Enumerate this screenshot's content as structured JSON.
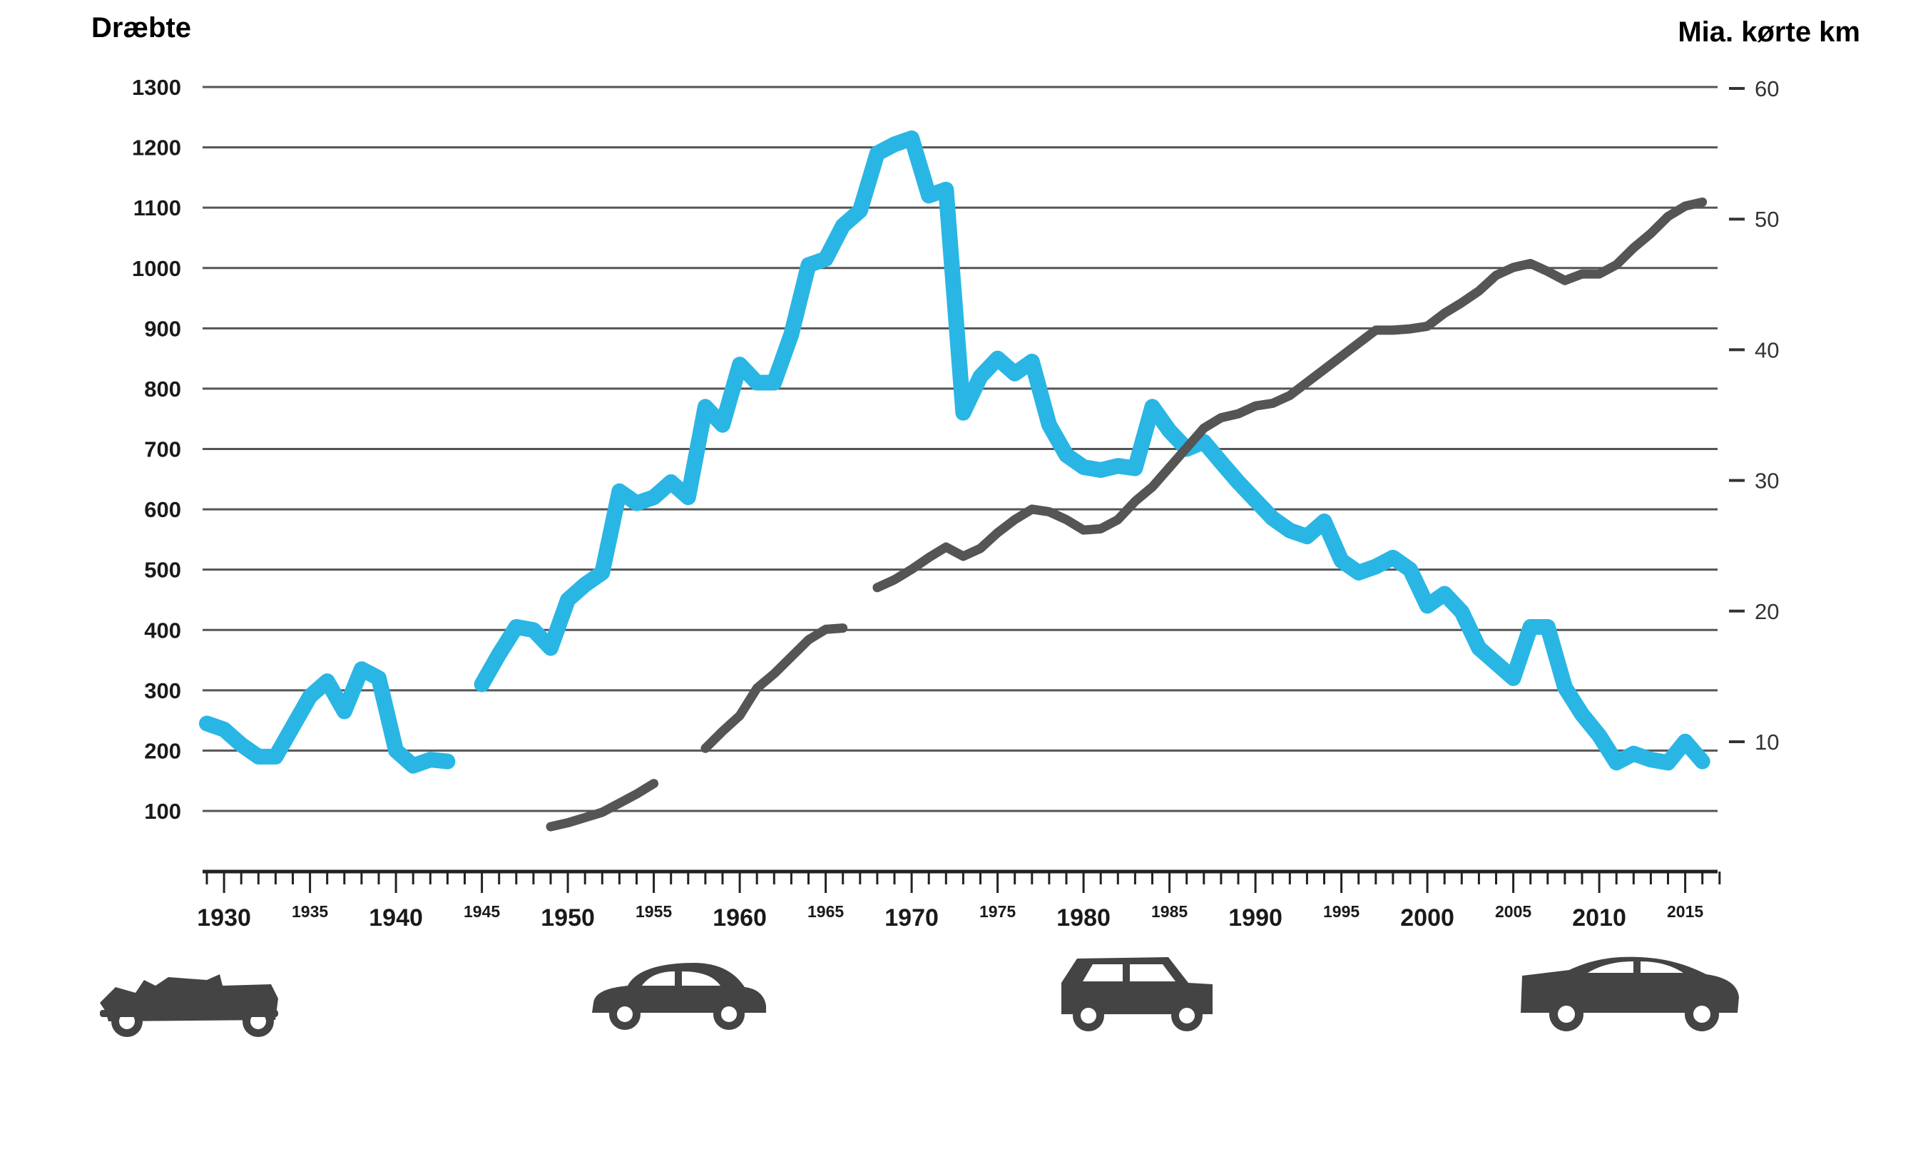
{
  "chart_data": {
    "type": "line",
    "title": "",
    "left_axis_label": "Dræbte",
    "right_axis_label": "Mia. kørte km",
    "left_axis": {
      "range": [
        0,
        1300
      ],
      "ticks": [
        100,
        200,
        300,
        400,
        500,
        600,
        700,
        800,
        900,
        1000,
        1100,
        1200,
        1300
      ]
    },
    "right_axis": {
      "range": [
        0,
        60
      ],
      "ticks": [
        10,
        20,
        30,
        40,
        50,
        60
      ]
    },
    "x_axis": {
      "range": [
        1929,
        2017
      ],
      "major_ticks": [
        1930,
        1940,
        1950,
        1960,
        1970,
        1980,
        1990,
        2000,
        2010
      ],
      "minor_ticks": [
        1935,
        1945,
        1955,
        1965,
        1975,
        1985,
        1995,
        2005,
        2015
      ]
    },
    "colors": {
      "killed": "#29b6e5",
      "km": "#555555",
      "grid": "#555555",
      "left_label": "#29b6e5",
      "right_label": "#333333",
      "car": "#444444"
    },
    "series": [
      {
        "name": "Dræbte",
        "axis": "left",
        "segments": [
          [
            [
              1929,
              245
            ],
            [
              1930,
              235
            ],
            [
              1931,
              210
            ],
            [
              1932,
              190
            ],
            [
              1933,
              190
            ],
            [
              1934,
              240
            ],
            [
              1935,
              290
            ],
            [
              1936,
              315
            ],
            [
              1937,
              265
            ],
            [
              1938,
              335
            ],
            [
              1939,
              320
            ],
            [
              1940,
              200
            ],
            [
              1941,
              175
            ],
            [
              1942,
              185
            ],
            [
              1943,
              182
            ]
          ],
          [
            [
              1945,
              310
            ],
            [
              1946,
              360
            ],
            [
              1947,
              405
            ],
            [
              1948,
              400
            ],
            [
              1949,
              370
            ],
            [
              1950,
              450
            ],
            [
              1951,
              475
            ],
            [
              1952,
              495
            ],
            [
              1953,
              630
            ],
            [
              1954,
              610
            ],
            [
              1955,
              620
            ],
            [
              1956,
              645
            ],
            [
              1957,
              620
            ],
            [
              1958,
              770
            ],
            [
              1959,
              740
            ],
            [
              1960,
              840
            ],
            [
              1961,
              810
            ],
            [
              1962,
              810
            ],
            [
              1963,
              890
            ],
            [
              1964,
              1005
            ],
            [
              1965,
              1015
            ],
            [
              1966,
              1070
            ],
            [
              1967,
              1095
            ],
            [
              1968,
              1190
            ],
            [
              1969,
              1205
            ],
            [
              1970,
              1215
            ],
            [
              1971,
              1120
            ],
            [
              1972,
              1130
            ],
            [
              1973,
              760
            ],
            [
              1974,
              820
            ],
            [
              1975,
              850
            ],
            [
              1976,
              825
            ],
            [
              1977,
              845
            ],
            [
              1978,
              740
            ],
            [
              1979,
              690
            ],
            [
              1980,
              670
            ],
            [
              1981,
              665
            ],
            [
              1982,
              672
            ],
            [
              1983,
              668
            ],
            [
              1984,
              770
            ],
            [
              1985,
              730
            ],
            [
              1986,
              700
            ],
            [
              1987,
              712
            ],
            [
              1988,
              678
            ],
            [
              1989,
              645
            ],
            [
              1990,
              615
            ],
            [
              1991,
              585
            ],
            [
              1992,
              565
            ],
            [
              1993,
              555
            ],
            [
              1994,
              580
            ],
            [
              1995,
              515
            ],
            [
              1996,
              495
            ],
            [
              1997,
              505
            ],
            [
              1998,
              520
            ],
            [
              1999,
              500
            ],
            [
              2000,
              440
            ],
            [
              2001,
              460
            ],
            [
              2002,
              430
            ],
            [
              2003,
              370
            ],
            [
              2004,
              345
            ],
            [
              2005,
              320
            ],
            [
              2006,
              405
            ],
            [
              2007,
              405
            ],
            [
              2008,
              305
            ],
            [
              2009,
              260
            ],
            [
              2010,
              225
            ],
            [
              2011,
              180
            ],
            [
              2012,
              195
            ],
            [
              2013,
              185
            ],
            [
              2014,
              180
            ],
            [
              2015,
              215
            ],
            [
              2016,
              182
            ]
          ]
        ]
      },
      {
        "name": "Mia. kørte km",
        "axis": "right",
        "segments": [
          [
            [
              1949,
              3.5
            ],
            [
              1950,
              3.8
            ],
            [
              1951,
              4.2
            ],
            [
              1952,
              4.6
            ],
            [
              1953,
              5.3
            ],
            [
              1954,
              6.0
            ],
            [
              1955,
              6.8
            ]
          ],
          [
            [
              1958,
              9.5
            ],
            [
              1959,
              10.8
            ],
            [
              1960,
              12.0
            ],
            [
              1961,
              14.1
            ],
            [
              1962,
              15.2
            ],
            [
              1963,
              16.5
            ],
            [
              1964,
              17.8
            ],
            [
              1965,
              18.6
            ],
            [
              1966,
              18.7
            ]
          ],
          [
            [
              1968,
              21.8
            ],
            [
              1969,
              22.4
            ],
            [
              1970,
              23.2
            ],
            [
              1971,
              24.1
            ],
            [
              1972,
              24.9
            ],
            [
              1973,
              24.2
            ],
            [
              1974,
              24.8
            ],
            [
              1975,
              26.0
            ],
            [
              1976,
              27.0
            ],
            [
              1977,
              27.8
            ],
            [
              1978,
              27.6
            ],
            [
              1979,
              27.0
            ],
            [
              1980,
              26.2
            ],
            [
              1981,
              26.3
            ],
            [
              1982,
              27.0
            ],
            [
              1983,
              28.4
            ],
            [
              1984,
              29.5
            ],
            [
              1985,
              31.0
            ],
            [
              1986,
              32.5
            ],
            [
              1987,
              34.0
            ],
            [
              1988,
              34.8
            ],
            [
              1989,
              35.1
            ],
            [
              1990,
              35.7
            ],
            [
              1991,
              35.9
            ],
            [
              1992,
              36.5
            ],
            [
              1993,
              37.5
            ],
            [
              1994,
              38.5
            ],
            [
              1995,
              39.5
            ],
            [
              1996,
              40.5
            ],
            [
              1997,
              41.5
            ],
            [
              1998,
              41.5
            ],
            [
              1999,
              41.6
            ],
            [
              2000,
              41.8
            ],
            [
              2001,
              42.8
            ],
            [
              2002,
              43.6
            ],
            [
              2003,
              44.5
            ],
            [
              2004,
              45.7
            ],
            [
              2005,
              46.3
            ],
            [
              2006,
              46.6
            ],
            [
              2007,
              46.0
            ],
            [
              2008,
              45.3
            ],
            [
              2009,
              45.8
            ],
            [
              2010,
              45.8
            ],
            [
              2011,
              46.5
            ],
            [
              2012,
              47.8
            ],
            [
              2013,
              48.9
            ],
            [
              2014,
              50.2
            ],
            [
              2015,
              51.0
            ],
            [
              2016,
              51.3
            ]
          ]
        ]
      }
    ]
  }
}
